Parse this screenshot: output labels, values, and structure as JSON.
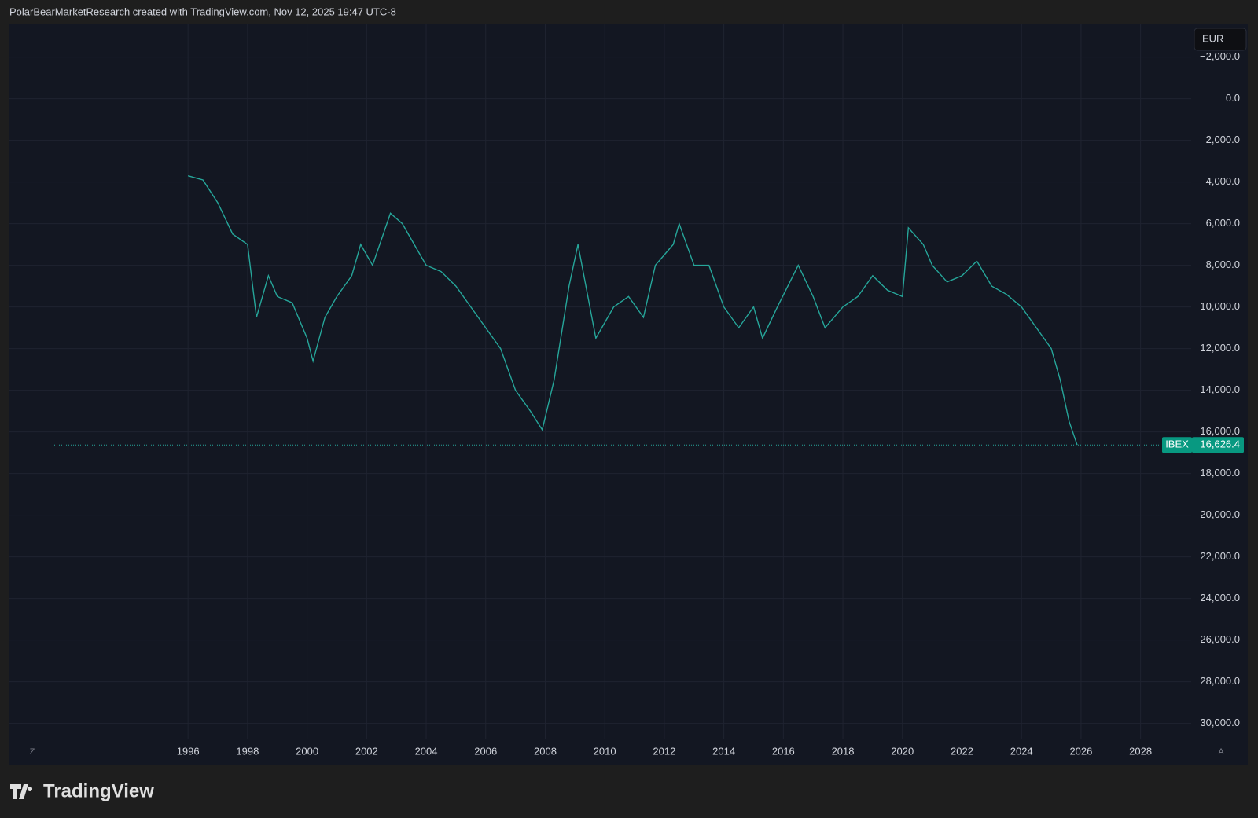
{
  "header": "PolarBearMarketResearch created with TradingView.com, Nov 12, 2025 19:47 UTC-8",
  "brand": "TradingView",
  "currency": "EUR",
  "axis_buttons": [
    "Z",
    "A"
  ],
  "chart_data": {
    "type": "line",
    "inverted": true,
    "grid": true,
    "x": [
      1996.0,
      1996.5,
      1997.0,
      1997.5,
      1998.0,
      1998.3,
      1998.7,
      1999.0,
      1999.5,
      2000.0,
      2000.2,
      2000.6,
      2001.0,
      2001.5,
      2001.8,
      2002.2,
      2002.8,
      2003.2,
      2003.6,
      2004.0,
      2004.5,
      2005.0,
      2005.5,
      2006.0,
      2006.5,
      2007.0,
      2007.5,
      2007.9,
      2008.3,
      2008.8,
      2009.1,
      2009.7,
      2010.3,
      2010.8,
      2011.3,
      2011.7,
      2012.3,
      2012.5,
      2013.0,
      2013.5,
      2014.0,
      2014.5,
      2015.0,
      2015.3,
      2015.8,
      2016.5,
      2017.0,
      2017.4,
      2018.0,
      2018.5,
      2019.0,
      2019.5,
      2020.0,
      2020.2,
      2020.7,
      2021.0,
      2021.5,
      2022.0,
      2022.5,
      2023.0,
      2023.5,
      2024.0,
      2024.5,
      2025.0,
      2025.3,
      2025.6,
      2025.87
    ],
    "series": [
      {
        "name": "IBEX",
        "color": "#26a69a",
        "values": [
          3700,
          3900,
          5000,
          6500,
          7000,
          10500,
          8500,
          9500,
          9800,
          11500,
          12600,
          10500,
          9500,
          8500,
          7000,
          8000,
          5500,
          6000,
          7000,
          8000,
          8300,
          9000,
          10000,
          11000,
          12000,
          14000,
          15000,
          15900,
          13500,
          9000,
          7000,
          11500,
          10000,
          9500,
          10500,
          8000,
          7000,
          6000,
          8000,
          8000,
          10000,
          11000,
          10000,
          11500,
          10000,
          8000,
          9500,
          11000,
          10000,
          9500,
          8500,
          9200,
          9500,
          6200,
          7000,
          8000,
          8800,
          8500,
          7800,
          9000,
          9400,
          10000,
          11000,
          12000,
          13500,
          15500,
          16626.4
        ]
      }
    ],
    "last_price": {
      "symbol": "IBEX",
      "value": 16626.4,
      "label": "16,626.4"
    },
    "xlim": [
      1990,
      2029.7
    ],
    "xticks": [
      1996,
      1998,
      2000,
      2002,
      2004,
      2006,
      2008,
      2010,
      2012,
      2014,
      2016,
      2018,
      2020,
      2022,
      2024,
      2026,
      2028
    ],
    "ylim": [
      -3570,
      30770
    ],
    "yticks": [
      {
        "value": -2000,
        "label": "−2,000.0"
      },
      {
        "value": 0,
        "label": "0.0"
      },
      {
        "value": 2000,
        "label": "2,000.0"
      },
      {
        "value": 4000,
        "label": "4,000.0"
      },
      {
        "value": 6000,
        "label": "6,000.0"
      },
      {
        "value": 8000,
        "label": "8,000.0"
      },
      {
        "value": 10000,
        "label": "10,000.0"
      },
      {
        "value": 12000,
        "label": "12,000.0"
      },
      {
        "value": 14000,
        "label": "14,000.0"
      },
      {
        "value": 16000,
        "label": "16,000.0"
      },
      {
        "value": 18000,
        "label": "18,000.0"
      },
      {
        "value": 20000,
        "label": "20,000.0"
      },
      {
        "value": 22000,
        "label": "22,000.0"
      },
      {
        "value": 24000,
        "label": "24,000.0"
      },
      {
        "value": 26000,
        "label": "26,000.0"
      },
      {
        "value": 28000,
        "label": "28,000.0"
      },
      {
        "value": 30000,
        "label": "30,000.0"
      }
    ]
  }
}
